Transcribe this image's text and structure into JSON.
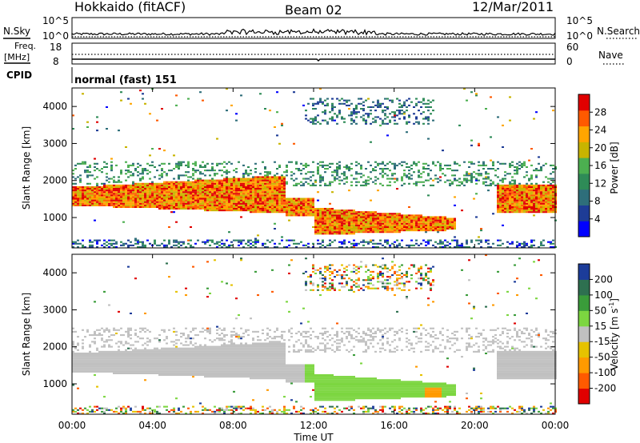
{
  "header": {
    "radar": "Hokkaido (fitACF)",
    "beam": "Beam 02",
    "date": "12/Mar/2011"
  },
  "top_panels": {
    "nsky_label": "N.Sky",
    "nsearch_label": "N.Search",
    "nsky_ticks": [
      "10^5",
      "10^0"
    ],
    "nsearch_ticks": [
      "10^5",
      "10^0"
    ],
    "freq_label_line1": "Freq.",
    "freq_label_line2": "[MHz]",
    "freq_ticks": [
      "18",
      "8"
    ],
    "nave_label": "Nave",
    "nave_ticks": [
      "60",
      "0"
    ],
    "cpid_label": "CPID",
    "cpid_text": "normal (fast) 151"
  },
  "chart_data": [
    {
      "type": "heatmap",
      "panel": "power",
      "ylabel": "Slant Range [km]",
      "xlabel": "Time UT",
      "xlim_hours": [
        0,
        24
      ],
      "ylim": [
        180,
        4500
      ],
      "yticks": [
        "1000",
        "2000",
        "3000",
        "4000"
      ],
      "xticks": [
        "00:00",
        "04:00",
        "08:00",
        "12:00",
        "16:00",
        "20:00",
        "00:00"
      ],
      "colorbar": {
        "label": "Power [dB]",
        "ticks": [
          "28",
          "24",
          "20",
          "16",
          "12",
          "8",
          "4"
        ],
        "colors": [
          "#0000ff",
          "#1e3c96",
          "#2e6e7a",
          "#2e8b57",
          "#4caf50",
          "#c8b400",
          "#ffa500",
          "#ff5a00",
          "#e00000"
        ]
      }
    },
    {
      "type": "heatmap",
      "panel": "velocity",
      "ylabel": "Slant Range [km]",
      "xlabel": "Time UT",
      "xlim_hours": [
        0,
        24
      ],
      "ylim": [
        180,
        4500
      ],
      "yticks": [
        "1000",
        "2000",
        "3000",
        "4000"
      ],
      "xticks": [
        "00:00",
        "04:00",
        "08:00",
        "12:00",
        "16:00",
        "20:00",
        "00:00"
      ],
      "colorbar": {
        "label": "Velocity [m s",
        "label_sup": "-1",
        "label_end": "]",
        "ticks": [
          "200",
          "100",
          "50",
          "15",
          "-15",
          "-50",
          "-100",
          "-200"
        ],
        "colors": [
          "#e00000",
          "#ff5a00",
          "#ff9a00",
          "#e6c200",
          "#c0c0c0",
          "#7cd640",
          "#3a9c3a",
          "#2e7050",
          "#1c3c9a"
        ]
      }
    }
  ],
  "colors": {
    "ground": "#c8c8c8",
    "power_main": "#ff7a00",
    "velocity_main": "#7cd640"
  }
}
